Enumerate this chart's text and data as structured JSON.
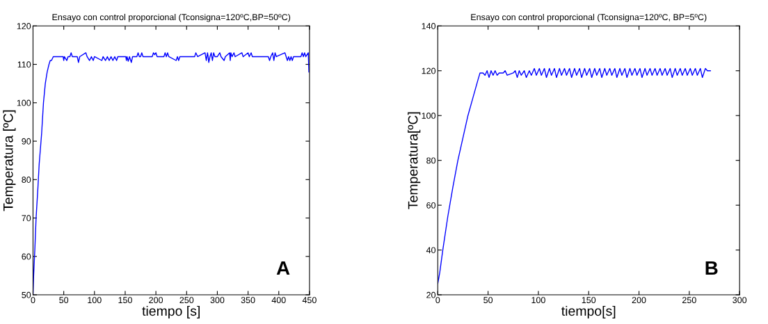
{
  "chart_data": [
    {
      "type": "line",
      "title": "Ensayo con control proporcional (Tconsigna=120ºC,BP=50ºC)",
      "xlabel": "tiempo [s]",
      "ylabel": "Temperatura [ºC]",
      "xlim": [
        0,
        450
      ],
      "ylim": [
        50,
        120
      ],
      "xticks": [
        0,
        50,
        100,
        150,
        200,
        250,
        300,
        350,
        400,
        450
      ],
      "yticks": [
        50,
        60,
        70,
        80,
        90,
        100,
        110,
        120
      ],
      "grid": false,
      "annotations": [
        "A"
      ],
      "series": [
        {
          "color": "#0000ff",
          "x": [
            0,
            1,
            3,
            5,
            8,
            10,
            14,
            17,
            20,
            23,
            26,
            28,
            30,
            33,
            49,
            50,
            51,
            55,
            57,
            60,
            62,
            64,
            72,
            74,
            76,
            86,
            88,
            92,
            95,
            98,
            100,
            112,
            114,
            118,
            121,
            124,
            127,
            130,
            133,
            136,
            138,
            151,
            152,
            153,
            155,
            157,
            159,
            160,
            162,
            169,
            171,
            173,
            175,
            177,
            179,
            194,
            196,
            198,
            200,
            202,
            213,
            215,
            217,
            219,
            221,
            233,
            235,
            237,
            239,
            263,
            265,
            268,
            280,
            282,
            284,
            285,
            286,
            288,
            290,
            292,
            294,
            296,
            300,
            304,
            306,
            311,
            313,
            320,
            321,
            322,
            324,
            327,
            329,
            340,
            342,
            350,
            352,
            355,
            357,
            383,
            385,
            387,
            390,
            392,
            394,
            396,
            410,
            412,
            414,
            416,
            418,
            420,
            422,
            424,
            436,
            438,
            440,
            442,
            444,
            448,
            449
          ],
          "values": [
            50,
            55,
            62,
            70,
            78,
            84,
            92,
            100,
            105,
            108,
            110,
            111,
            111,
            112,
            112,
            111,
            112,
            111,
            112,
            112,
            113,
            112,
            112,
            110.5,
            112,
            113,
            112,
            111,
            112,
            111,
            112,
            111,
            112,
            111,
            112,
            111,
            112,
            111,
            112,
            111,
            112,
            112,
            111,
            112,
            110.8,
            112,
            111,
            110.5,
            112,
            112,
            113,
            112,
            112,
            113,
            112,
            112,
            113,
            112.5,
            113,
            112,
            112,
            113,
            112,
            113,
            112,
            111,
            112,
            111,
            112,
            112,
            113,
            112,
            113,
            111,
            113,
            112,
            110.5,
            112,
            113,
            111,
            113,
            112,
            112,
            113,
            112,
            111,
            112,
            113,
            111,
            113,
            112,
            113,
            112,
            113,
            112,
            113,
            112,
            113,
            112,
            112,
            111,
            112,
            113,
            111,
            113,
            112,
            113,
            112,
            111,
            112,
            111,
            112,
            111,
            112,
            112,
            113,
            112,
            113,
            112,
            113,
            108
          ]
        }
      ]
    },
    {
      "type": "line",
      "title": "Ensayo con control proporcional (Tconsigna=120ºC, BP=5ºC)",
      "xlabel": "tiempo[s]",
      "ylabel": "Temperatura[ºC]",
      "xlim": [
        0,
        300
      ],
      "ylim": [
        20,
        140
      ],
      "xticks": [
        0,
        50,
        100,
        150,
        200,
        250,
        300
      ],
      "yticks": [
        20,
        40,
        60,
        80,
        100,
        120,
        140
      ],
      "grid": false,
      "annotations": [
        "B"
      ],
      "series": [
        {
          "color": "#0000ff",
          "x": [
            0,
            2,
            5,
            10,
            15,
            20,
            25,
            30,
            35,
            40,
            42,
            45,
            47,
            49,
            51,
            53,
            55,
            57,
            59,
            61,
            65,
            67,
            69,
            75,
            77,
            79,
            81,
            83,
            86,
            88,
            91,
            93,
            96,
            98,
            101,
            103,
            106,
            108,
            111,
            113,
            116,
            118,
            121,
            123,
            126,
            128,
            131,
            133,
            136,
            138,
            141,
            143,
            146,
            148,
            151,
            153,
            156,
            158,
            161,
            163,
            166,
            168,
            171,
            173,
            176,
            178,
            181,
            183,
            186,
            188,
            191,
            193,
            196,
            198,
            201,
            203,
            206,
            208,
            211,
            213,
            216,
            218,
            221,
            223,
            226,
            228,
            231,
            233,
            236,
            238,
            241,
            243,
            246,
            248,
            251,
            253,
            256,
            258,
            261,
            263,
            266,
            268,
            271
          ],
          "values": [
            25,
            30,
            40,
            55,
            68,
            80,
            90,
            100,
            108,
            116,
            119,
            119,
            118,
            120,
            117,
            120,
            118,
            120,
            118,
            119,
            119,
            120,
            118,
            119,
            120,
            117,
            120,
            118,
            120,
            117,
            120,
            118,
            121,
            118,
            121,
            118,
            121,
            117,
            121,
            118,
            121,
            117,
            121,
            118,
            121,
            118,
            121,
            117,
            121,
            118,
            121,
            117,
            121,
            118,
            121,
            117,
            121,
            118,
            121,
            117,
            121,
            118,
            121,
            118,
            121,
            117,
            121,
            118,
            121,
            117,
            121,
            118,
            121,
            118,
            121,
            117,
            121,
            118,
            121,
            118,
            121,
            118,
            121,
            118,
            121,
            118,
            121,
            117,
            121,
            118,
            121,
            118,
            121,
            118,
            121,
            118,
            121,
            118,
            121,
            117,
            121,
            120,
            120
          ]
        }
      ]
    }
  ]
}
